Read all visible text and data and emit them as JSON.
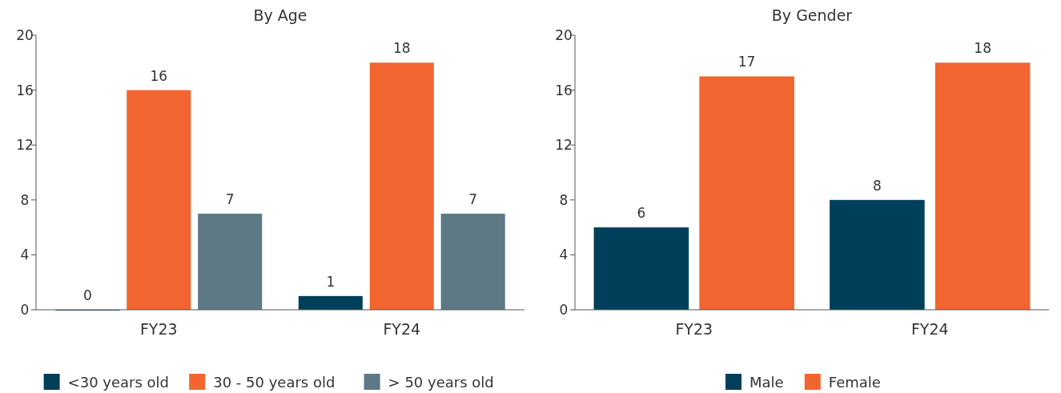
{
  "chart_data": [
    {
      "type": "bar",
      "title": "By Age",
      "categories": [
        "FY23",
        "FY24"
      ],
      "series": [
        {
          "name": "<30 years old",
          "color": "#003f5a",
          "values": [
            0,
            1
          ]
        },
        {
          "name": "30 - 50 years old",
          "color": "#f26430",
          "values": [
            16,
            18
          ]
        },
        {
          "name": "> 50 years old",
          "color": "#5d7985",
          "values": [
            7,
            7
          ]
        }
      ],
      "ylim": [
        0,
        20
      ],
      "yticks": [
        0,
        4,
        8,
        12,
        16,
        20
      ],
      "data_labels": true,
      "grid": false,
      "legend": "bottom"
    },
    {
      "type": "bar",
      "title": "By Gender",
      "categories": [
        "FY23",
        "FY24"
      ],
      "series": [
        {
          "name": "Male",
          "color": "#003f5a",
          "values": [
            6,
            8
          ]
        },
        {
          "name": "Female",
          "color": "#f26430",
          "values": [
            17,
            18
          ]
        }
      ],
      "ylim": [
        0,
        20
      ],
      "yticks": [
        0,
        4,
        8,
        12,
        16,
        20
      ],
      "data_labels": true,
      "grid": false,
      "legend": "bottom"
    }
  ]
}
